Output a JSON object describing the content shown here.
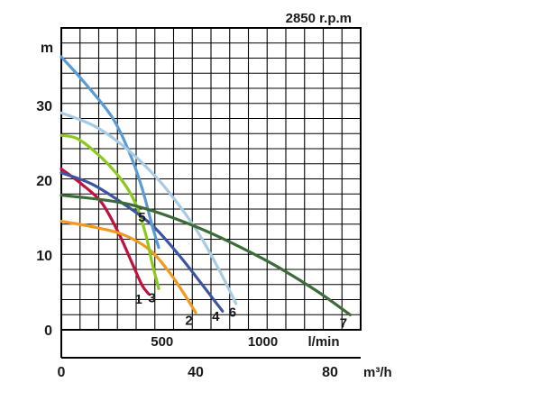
{
  "chart_data": {
    "type": "line",
    "title": "2850 r.p.m",
    "ylabel": "m",
    "xlabel": "m³/h",
    "xlabel_secondary": "l/min",
    "ylim": [
      -4,
      40
    ],
    "xlim": [
      0,
      90
    ],
    "y_ticks": [
      0,
      10,
      20,
      30
    ],
    "x_ticks": [
      0,
      40,
      80
    ],
    "x_secondary_ticks": [
      {
        "value": 500,
        "label": "500"
      },
      {
        "value": 1000,
        "label": "1000"
      }
    ],
    "grid": true,
    "series": [
      {
        "name": "1",
        "color": "#c0123e",
        "points": [
          [
            0,
            21.5
          ],
          [
            6,
            19.5
          ],
          [
            12,
            17
          ],
          [
            17,
            13
          ],
          [
            21,
            9
          ],
          [
            24,
            6
          ],
          [
            26,
            4.8
          ]
        ],
        "label_at": [
          23,
          4.2
        ]
      },
      {
        "name": "2",
        "color": "#f29a1f",
        "points": [
          [
            0,
            14.5
          ],
          [
            9,
            13.8
          ],
          [
            18,
            12.8
          ],
          [
            26,
            10.8
          ],
          [
            32,
            7.8
          ],
          [
            37,
            4.5
          ],
          [
            40,
            2.3
          ]
        ],
        "label_at": [
          38,
          1.4
        ]
      },
      {
        "name": "3",
        "color": "#8dc81e",
        "points": [
          [
            0,
            26
          ],
          [
            5,
            25.5
          ],
          [
            12,
            23
          ],
          [
            18,
            20
          ],
          [
            22,
            17
          ],
          [
            25,
            13
          ],
          [
            27,
            9
          ],
          [
            29,
            5.5
          ]
        ],
        "label_at": [
          27,
          4.4
        ]
      },
      {
        "name": "4",
        "color": "#3d55a0",
        "points": [
          [
            0,
            21
          ],
          [
            9,
            19.5
          ],
          [
            18,
            17
          ],
          [
            27,
            14
          ],
          [
            35,
            10
          ],
          [
            42,
            6
          ],
          [
            48,
            2.5
          ]
        ],
        "label_at": [
          46,
          1.9
        ]
      },
      {
        "name": "5",
        "color": "#5b9bd5",
        "points": [
          [
            0,
            36.5
          ],
          [
            7,
            33
          ],
          [
            15,
            28.5
          ],
          [
            20,
            24
          ],
          [
            24,
            19
          ],
          [
            27,
            14
          ],
          [
            29,
            11
          ]
        ],
        "label_at": [
          24,
          15.2
        ]
      },
      {
        "name": "6",
        "color": "#a8cbe5",
        "points": [
          [
            0,
            29
          ],
          [
            10,
            27.2
          ],
          [
            20,
            24
          ],
          [
            30,
            19.5
          ],
          [
            40,
            13.5
          ],
          [
            47,
            8
          ],
          [
            52,
            3.5
          ]
        ],
        "label_at": [
          51,
          2.5
        ]
      },
      {
        "name": "7",
        "color": "#3d6b3a",
        "points": [
          [
            0,
            18
          ],
          [
            20,
            16.8
          ],
          [
            40,
            13.8
          ],
          [
            60,
            9.5
          ],
          [
            75,
            5.5
          ],
          [
            86,
            2
          ]
        ],
        "label_at": [
          84,
          1
        ]
      }
    ]
  }
}
